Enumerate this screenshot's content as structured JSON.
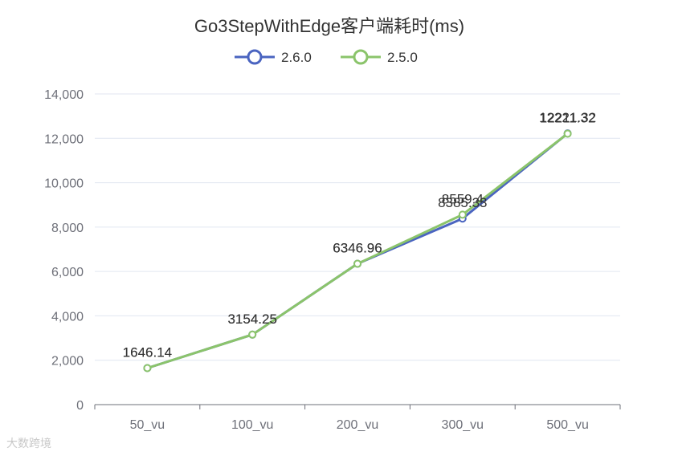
{
  "chart_data": {
    "type": "line",
    "title": "Go3StepWithEdge客户端耗时(ms)",
    "categories": [
      "50_vu",
      "100_vu",
      "200_vu",
      "300_vu",
      "500_vu"
    ],
    "series": [
      {
        "name": "2.6.0",
        "color": "#4a64c0",
        "values": [
          1646.14,
          3154.25,
          6346.96,
          8385.33,
          12221.32
        ]
      },
      {
        "name": "2.5.0",
        "color": "#8bc46b",
        "values": [
          1646.14,
          3154.25,
          6346.96,
          8559.4,
          12211.32
        ]
      }
    ],
    "ylim": [
      0,
      14000
    ],
    "yticks": [
      "0",
      "2,000",
      "4,000",
      "6,000",
      "8,000",
      "10,000",
      "12,000",
      "14,000"
    ],
    "ytick_values": [
      0,
      2000,
      4000,
      6000,
      8000,
      10000,
      12000,
      14000
    ],
    "grid": true,
    "legend": "top-center"
  },
  "watermark": "大数跨境"
}
